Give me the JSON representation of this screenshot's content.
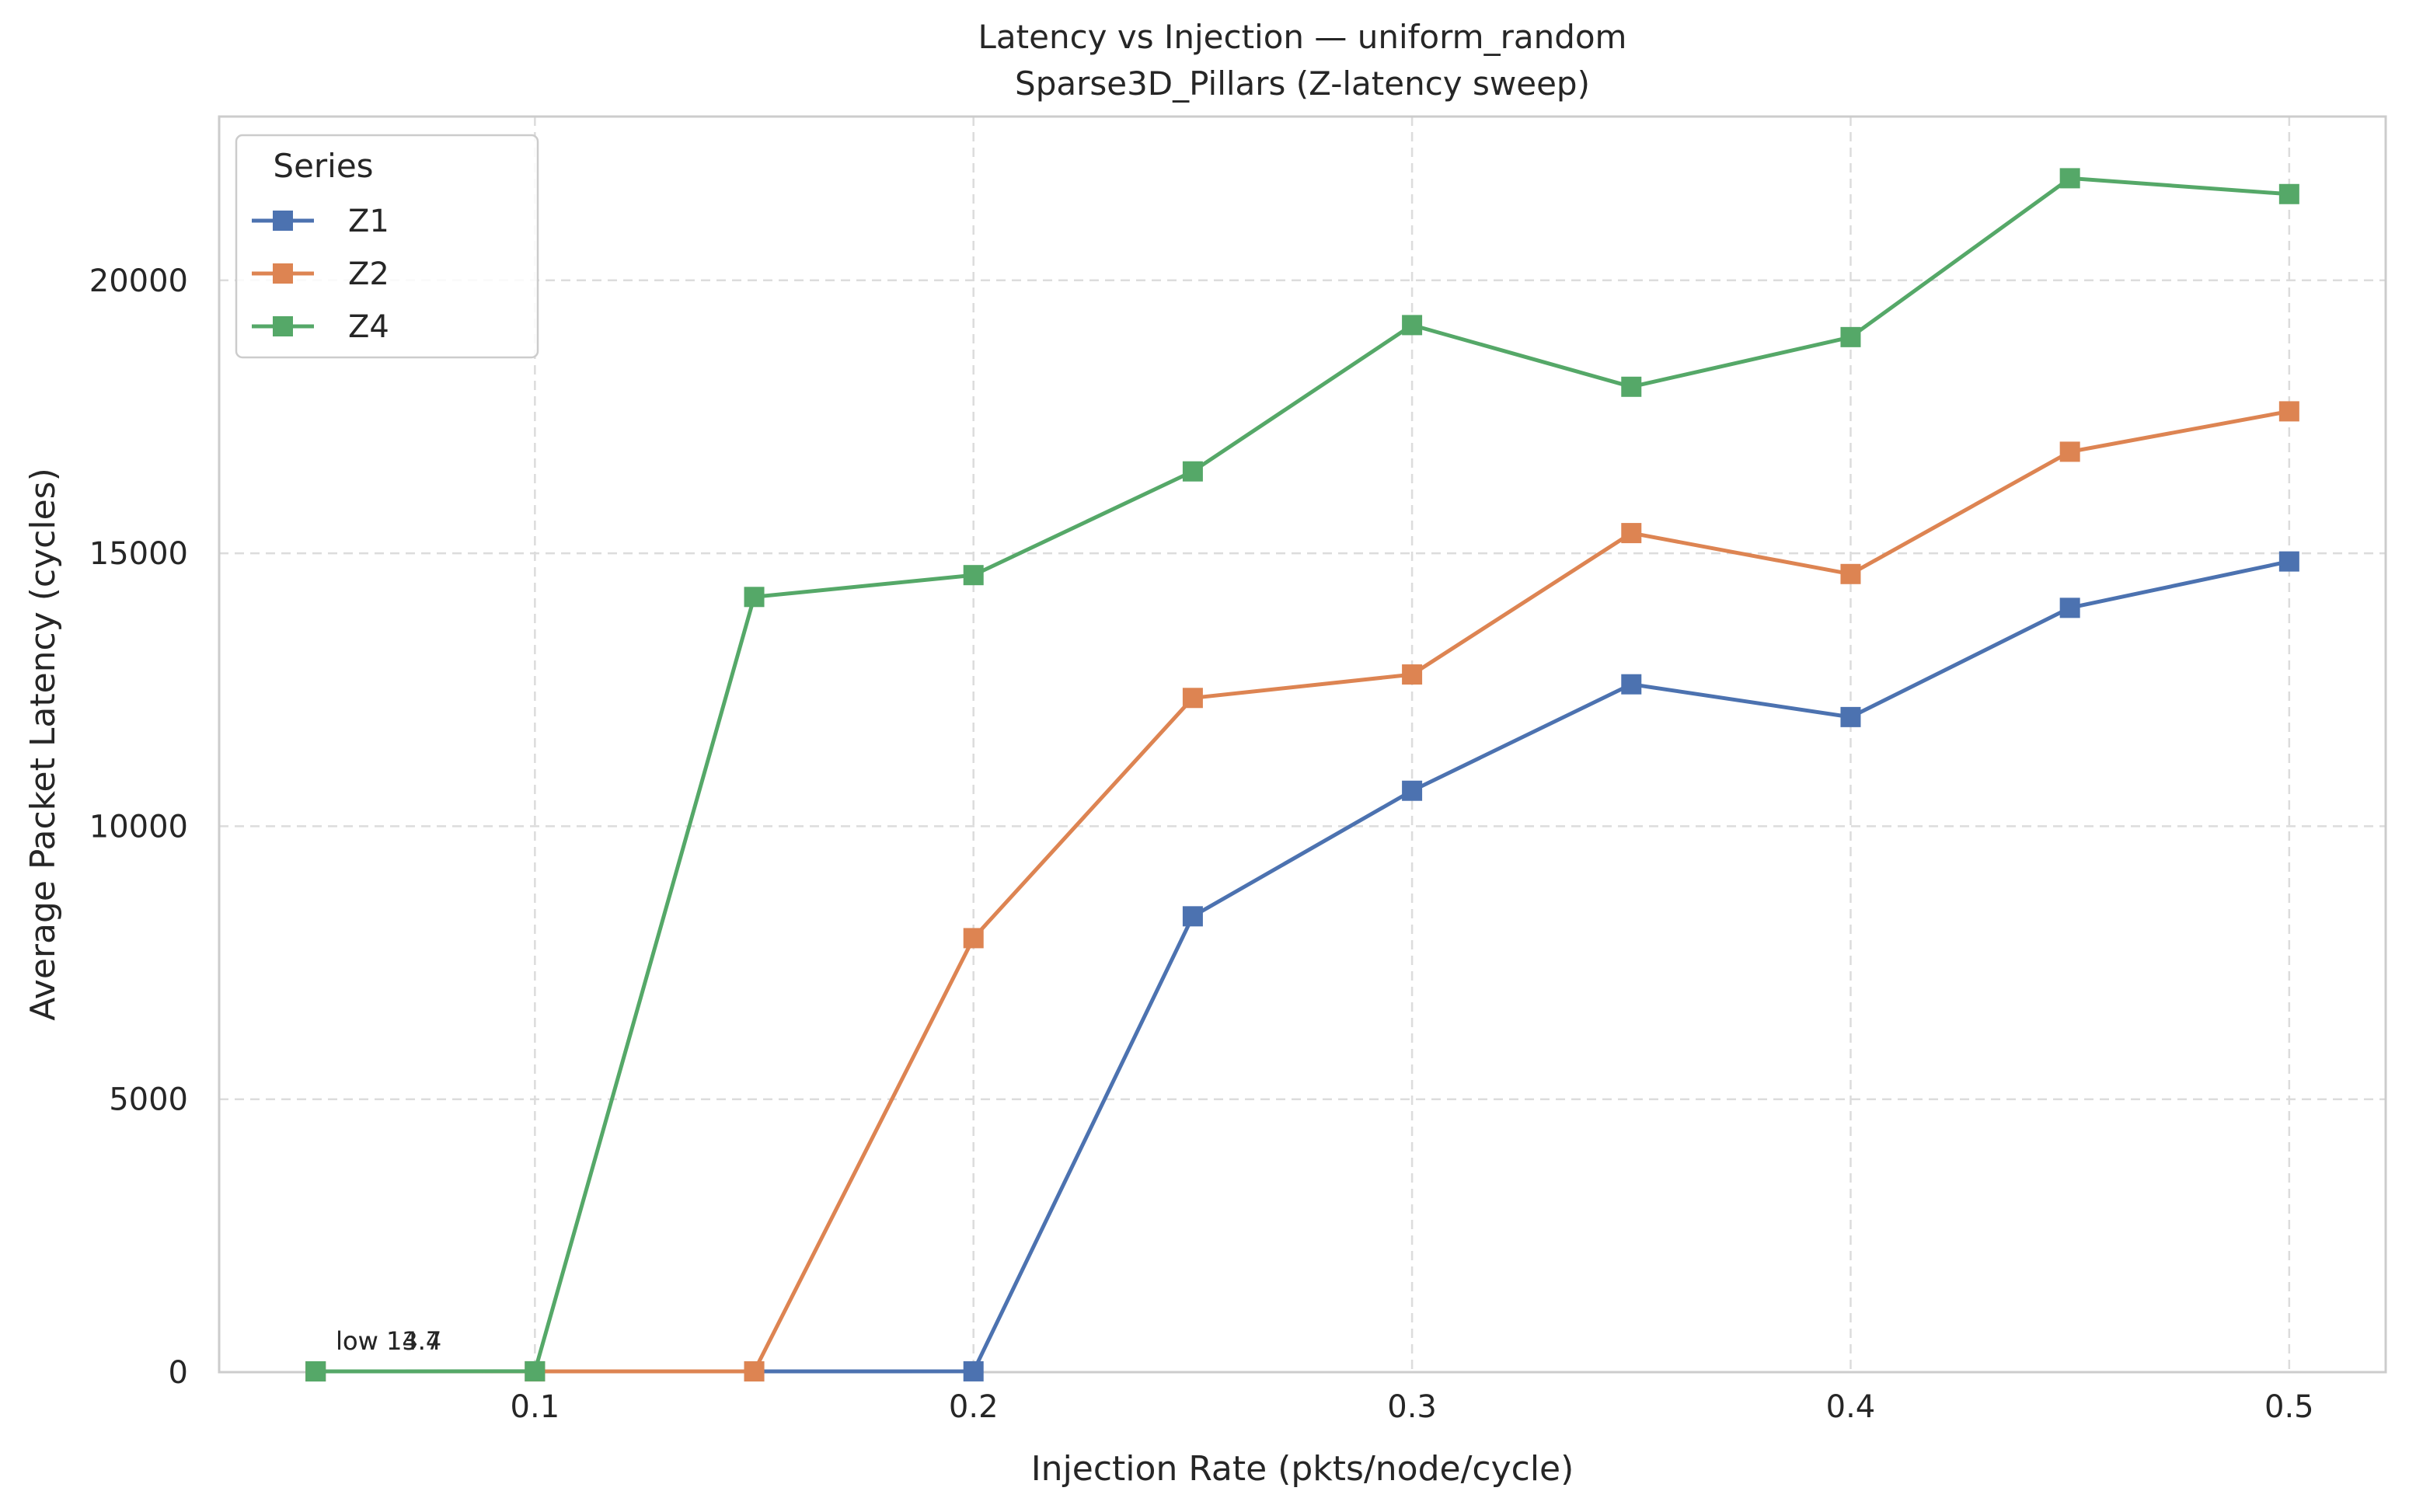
{
  "chart_data": {
    "type": "line",
    "title": "Latency vs Injection — uniform_random",
    "subtitle": "Sparse3D_Pillars (Z-latency sweep)",
    "xlabel": "Injection Rate (pkts/node/cycle)",
    "ylabel": "Average Packet Latency (cycles)",
    "xlim": [
      0.028,
      0.522
    ],
    "ylim": [
      0,
      23000
    ],
    "xticks": [
      0.1,
      0.2,
      0.3,
      0.4,
      0.5
    ],
    "xtick_labels": [
      "0.1",
      "0.2",
      "0.3",
      "0.4",
      "0.5"
    ],
    "yticks": [
      0,
      5000,
      10000,
      15000,
      20000
    ],
    "ytick_labels": [
      "0",
      "5000",
      "10000",
      "15000",
      "20000"
    ],
    "grid": true,
    "legend": {
      "title": "Series",
      "position": "top-left"
    },
    "x": [
      0.05,
      0.1,
      0.15,
      0.2,
      0.25,
      0.3,
      0.35,
      0.4,
      0.45,
      0.5
    ],
    "series": [
      {
        "name": "Z1",
        "color": "#4c72b0",
        "values": [
          13.7,
          14.0,
          14.0,
          15.0,
          8350,
          10650,
          12600,
          12000,
          14000,
          14850
        ]
      },
      {
        "name": "Z2",
        "color": "#dd8452",
        "values": [
          14.0,
          14.0,
          14.0,
          7950,
          12350,
          12780,
          15370,
          14620,
          16860,
          17600
        ]
      },
      {
        "name": "Z4",
        "color": "#55a868",
        "values": [
          14.4,
          16.0,
          14200,
          14600,
          16500,
          19180,
          18050,
          18960,
          21870,
          21580
        ]
      }
    ],
    "annotations": [
      {
        "text": "low 13.7",
        "x": 0.05,
        "y": 13.7
      },
      {
        "text": "low 14.4",
        "x": 0.05,
        "y": 14.4
      }
    ]
  }
}
